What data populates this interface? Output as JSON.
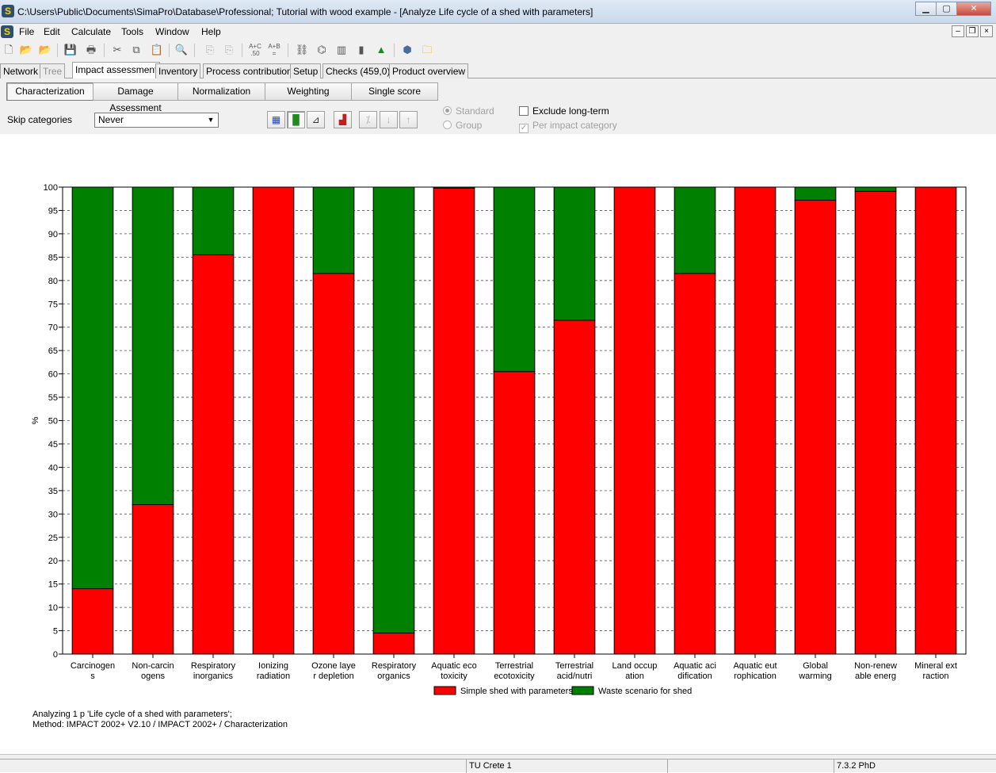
{
  "window": {
    "title": "C:\\Users\\Public\\Documents\\SimaPro\\Database\\Professional; Tutorial with wood example - [Analyze Life cycle of a shed with parameters]",
    "app_icon": "S"
  },
  "menu": [
    "File",
    "Edit",
    "Calculate",
    "Tools",
    "Window",
    "Help"
  ],
  "toolbar": {
    "icons": [
      "new-icon",
      "open-icon",
      "open-project-icon",
      "save-icon",
      "print-icon",
      "cut-icon",
      "copy-icon",
      "paste-icon",
      "search-icon",
      "disabled-icon",
      "disabled-icon",
      "calc-ab-icon",
      "calc-ab2-icon",
      "network-icon",
      "tree-icon",
      "chart-icon",
      "bar-chart-icon",
      "tree-green-icon",
      "box-icon",
      "folder-icon"
    ]
  },
  "tabs": [
    {
      "label": "Network",
      "active": false,
      "disabled": false
    },
    {
      "label": "Tree",
      "active": false,
      "disabled": true
    },
    {
      "label": "Impact assessment",
      "active": true,
      "disabled": false
    },
    {
      "label": "Inventory",
      "active": false,
      "disabled": false
    },
    {
      "label": "Process contribution",
      "active": false,
      "disabled": false
    },
    {
      "label": "Setup",
      "active": false,
      "disabled": false
    },
    {
      "label": "Checks (459,0)",
      "active": false,
      "disabled": false
    },
    {
      "label": "Product overview",
      "active": false,
      "disabled": false
    }
  ],
  "subtabs": [
    {
      "label": "Characterization",
      "active": true
    },
    {
      "label": "Damage Assessment",
      "active": false
    },
    {
      "label": "Normalization",
      "active": false
    },
    {
      "label": "Weighting",
      "active": false
    },
    {
      "label": "Single score",
      "active": false
    }
  ],
  "controls": {
    "skip_label": "Skip categories",
    "skip_value": "Never",
    "standard": "Standard",
    "group": "Group",
    "exclude_long_term": "Exclude long-term",
    "per_impact_category": "Per impact category"
  },
  "chart_data": {
    "type": "bar",
    "stacked": true,
    "ylabel": "%",
    "ylim": [
      0,
      100
    ],
    "ytick_step": 5,
    "grid": true,
    "legend_position": "bottom",
    "categories": [
      [
        "Carcinogen",
        "s"
      ],
      [
        "Non-carcin",
        "ogens"
      ],
      [
        "Respiratory",
        "inorganics"
      ],
      [
        "Ionizing",
        "radiation"
      ],
      [
        "Ozone laye",
        "r depletion"
      ],
      [
        "Respiratory",
        "organics"
      ],
      [
        "Aquatic eco",
        "toxicity"
      ],
      [
        "Terrestrial",
        "ecotoxicity"
      ],
      [
        "Terrestrial",
        "acid/nutri"
      ],
      [
        "Land occup",
        "ation"
      ],
      [
        "Aquatic aci",
        "dification"
      ],
      [
        "Aquatic eut",
        "rophication"
      ],
      [
        "Global",
        "warming"
      ],
      [
        "Non-renew",
        "able energ"
      ],
      [
        "Mineral ext",
        "raction"
      ]
    ],
    "series": [
      {
        "name": "Simple shed with parameters",
        "color": "#ff0000",
        "values": [
          14,
          32,
          85.5,
          100,
          81.5,
          4.5,
          99.8,
          60.5,
          71.5,
          100,
          81.5,
          100,
          97.2,
          99.1,
          100
        ]
      },
      {
        "name": "Waste scenario for shed",
        "color": "#008000",
        "values": [
          86,
          68,
          14.5,
          0,
          18.5,
          95.5,
          0.2,
          39.5,
          28.5,
          0,
          18.5,
          0,
          2.8,
          0.9,
          0
        ]
      }
    ]
  },
  "info": {
    "line1": "Analyzing 1 p 'Life cycle of a shed with parameters';",
    "line2": "Method: IMPACT 2002+ V2.10 / IMPACT 2002+ / Characterization"
  },
  "status": {
    "cell1": "",
    "user": "TU Crete 1",
    "cell3": "",
    "version": "7.3.2 PhD"
  }
}
